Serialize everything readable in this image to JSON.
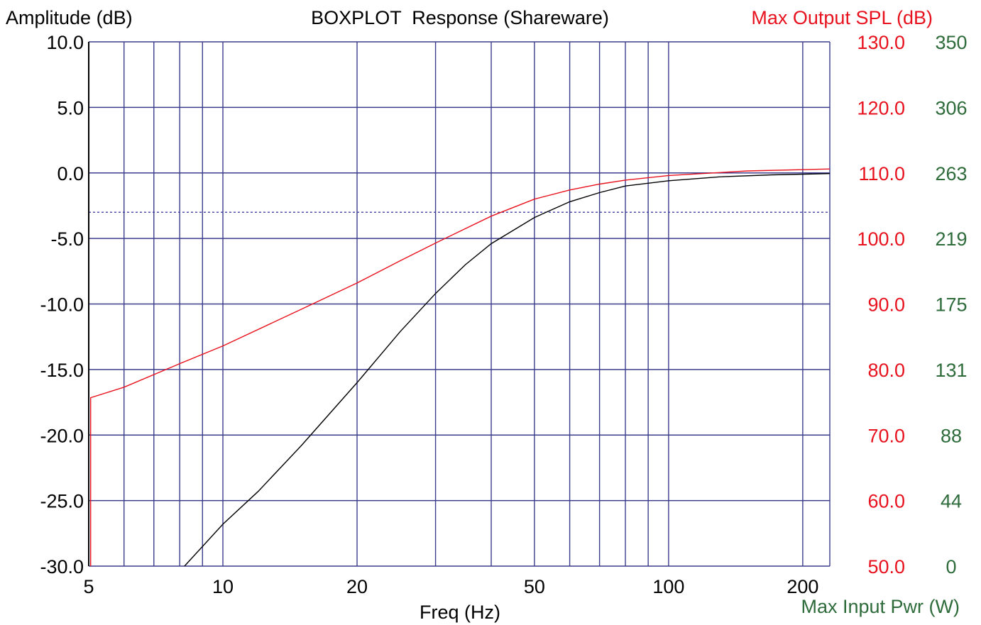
{
  "chart_data": {
    "type": "line",
    "title": "BOXPLOT  Response (Shareware)",
    "xlabel": "Freq (Hz)",
    "ylabel_left": "Amplitude (dB)",
    "ylabel_right": "Max Output SPL (dB)",
    "ylabel_right2": "Max Input Pwr (W)",
    "x_scale": "log",
    "xlim": [
      5,
      230
    ],
    "ylim": [
      -30,
      10
    ],
    "spl_lim": [
      50,
      130
    ],
    "pwr_lim": [
      0,
      350
    ],
    "grid": true,
    "x_gridlines": [
      5,
      6,
      7,
      8,
      9,
      10,
      20,
      30,
      40,
      50,
      60,
      70,
      80,
      90,
      100,
      200
    ],
    "x_ticks": [
      {
        "v": 5,
        "label": "5"
      },
      {
        "v": 10,
        "label": "10"
      },
      {
        "v": 20,
        "label": "20"
      },
      {
        "v": 50,
        "label": "50"
      },
      {
        "v": 100,
        "label": "100"
      },
      {
        "v": 200,
        "label": "200"
      }
    ],
    "y_ticks": [
      "10.0",
      "5.0",
      "0.0",
      "-5.0",
      "-10.0",
      "-15.0",
      "-20.0",
      "-25.0",
      "-30.0"
    ],
    "y_ticks_spl": [
      "130.0",
      "120.0",
      "110.0",
      "100.0",
      "90.0",
      "80.0",
      "70.0",
      "60.0",
      "50.0"
    ],
    "y_ticks_pwr": [
      "350",
      "306",
      "263",
      "219",
      "175",
      "131",
      "88",
      "44",
      "0"
    ],
    "reference_line_db": -3,
    "series": [
      {
        "axis": "left",
        "color": "#000000",
        "x": [
          8.2,
          10,
          12,
          15,
          20,
          25,
          30,
          35,
          40,
          50,
          60,
          70,
          80,
          100,
          130,
          170,
          230
        ],
        "y": [
          -30,
          -26.8,
          -24.3,
          -20.8,
          -16,
          -12.1,
          -9.2,
          -7.0,
          -5.4,
          -3.4,
          -2.2,
          -1.5,
          -1.0,
          -0.6,
          -0.3,
          -0.15,
          -0.05
        ]
      },
      {
        "axis": "right",
        "color": "#e8121e",
        "x": [
          5.05,
          5.05,
          6,
          8,
          10,
          15,
          20,
          25,
          30,
          40,
          50,
          60,
          70,
          80,
          100,
          150,
          230
        ],
        "y": [
          50,
          75.7,
          77.3,
          80.9,
          83.6,
          89.2,
          93.2,
          96.6,
          99.3,
          103.4,
          106.0,
          107.4,
          108.3,
          108.9,
          109.6,
          110.3,
          110.6
        ]
      }
    ]
  },
  "colors": {
    "grid": "#3c3c8c",
    "axis_left": "#000000",
    "axis_right": "#e8121e",
    "axis_right2": "#2e6b3a",
    "reference": "#3c3ca0"
  }
}
